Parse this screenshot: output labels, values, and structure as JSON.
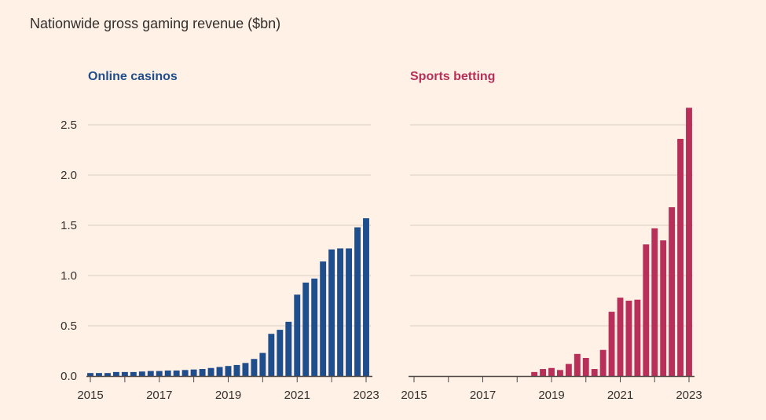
{
  "title": "Nationwide gross gaming revenue ($bn)",
  "chart_data": [
    {
      "type": "bar",
      "title": "Online casinos",
      "color": "#1f4e8c",
      "x_start": 2015,
      "x_step": 0.25,
      "xticks": [
        "2015",
        "2017",
        "2019",
        "2021",
        "2023"
      ],
      "yticks": [
        "0.0",
        "0.5",
        "1.0",
        "1.5",
        "2.0",
        "2.5"
      ],
      "ylim": [
        0,
        2.7
      ],
      "values": [
        0.03,
        0.03,
        0.03,
        0.04,
        0.04,
        0.04,
        0.045,
        0.05,
        0.05,
        0.055,
        0.055,
        0.06,
        0.065,
        0.07,
        0.08,
        0.09,
        0.1,
        0.11,
        0.13,
        0.17,
        0.23,
        0.42,
        0.46,
        0.54,
        0.81,
        0.93,
        0.97,
        1.14,
        1.26,
        1.27,
        1.27,
        1.48,
        1.57
      ]
    },
    {
      "type": "bar",
      "title": "Sports betting",
      "color": "#b8305a",
      "x_start": 2015,
      "x_step": 0.25,
      "xticks": [
        "2015",
        "2017",
        "2019",
        "2021",
        "2023"
      ],
      "yticks": [
        "0.0",
        "0.5",
        "1.0",
        "1.5",
        "2.0",
        "2.5"
      ],
      "ylim": [
        0,
        2.7
      ],
      "values": [
        0,
        0,
        0,
        0,
        0,
        0,
        0,
        0,
        0,
        0,
        0,
        0,
        0,
        0,
        0.04,
        0.07,
        0.08,
        0.06,
        0.12,
        0.22,
        0.18,
        0.07,
        0.26,
        0.64,
        0.78,
        0.75,
        0.76,
        1.31,
        1.47,
        1.35,
        1.68,
        2.36,
        2.67
      ]
    }
  ]
}
